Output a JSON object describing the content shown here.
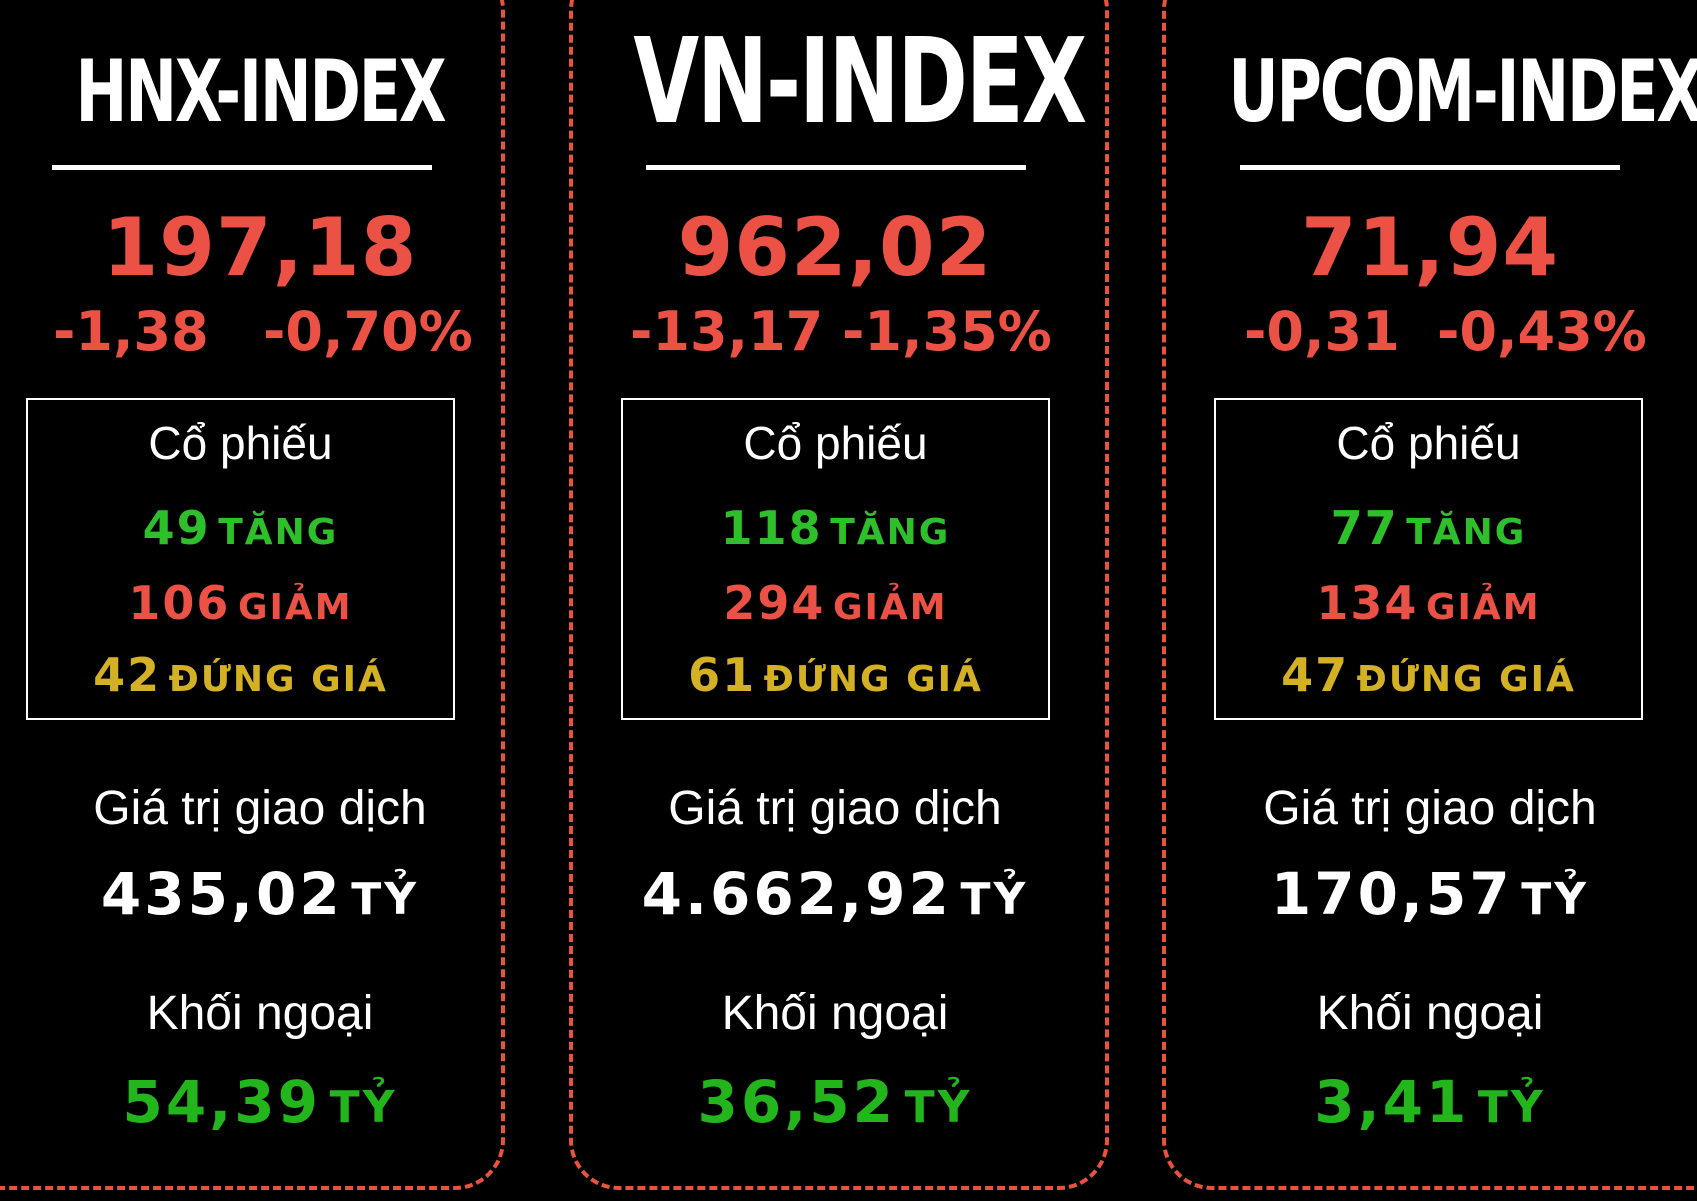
{
  "colors": {
    "frame": "#e8533b",
    "red": "#ec5146",
    "green": "#2ec02a",
    "yellow": "#d4b124",
    "white": "#ffffff"
  },
  "panels": [
    {
      "name": "HNX-INDEX",
      "value": "197,18",
      "change": "-1,38",
      "change_pct": "-0,70%",
      "stocks_label": "Cổ phiếu",
      "up_count": "49",
      "up_label": "TĂNG",
      "down_count": "106",
      "down_label": "GIẢM",
      "flat_count": "42",
      "flat_label": "ĐỨNG GIÁ",
      "trade_value_label": "Giá trị giao dịch",
      "trade_value": "435,02",
      "trade_unit": "TỶ",
      "foreign_label": "Khối ngoại",
      "foreign_value": "54,39",
      "foreign_unit": "TỶ"
    },
    {
      "name": "VN-INDEX",
      "value": "962,02",
      "change": "-13,17",
      "change_pct": "-1,35%",
      "stocks_label": "Cổ phiếu",
      "up_count": "118",
      "up_label": "TĂNG",
      "down_count": "294",
      "down_label": "GIẢM",
      "flat_count": "61",
      "flat_label": "ĐỨNG GIÁ",
      "trade_value_label": "Giá trị giao dịch",
      "trade_value": "4.662,92",
      "trade_unit": "TỶ",
      "foreign_label": "Khối ngoại",
      "foreign_value": "36,52",
      "foreign_unit": "TỶ"
    },
    {
      "name": "UPCOM-INDEX",
      "value": "71,94",
      "change": "-0,31",
      "change_pct": "-0,43%",
      "stocks_label": "Cổ phiếu",
      "up_count": "77",
      "up_label": "TĂNG",
      "down_count": "134",
      "down_label": "GIẢM",
      "flat_count": "47",
      "flat_label": "ĐỨNG GIÁ",
      "trade_value_label": "Giá trị giao dịch",
      "trade_value": "170,57",
      "trade_unit": "TỶ",
      "foreign_label": "Khối ngoại",
      "foreign_value": "3,41",
      "foreign_unit": "TỶ"
    }
  ]
}
